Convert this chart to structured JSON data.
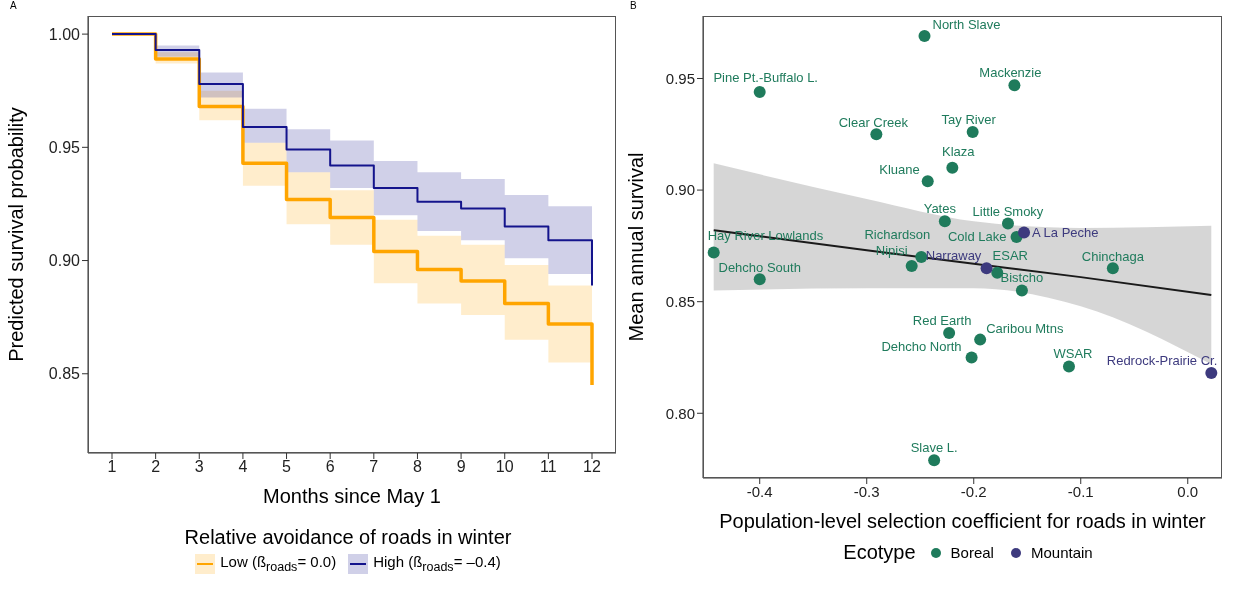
{
  "chart_data": [
    {
      "type": "step",
      "annotations": [
        "A"
      ],
      "xlabel": "Months since May 1",
      "ylabel": "Predicted survival probability",
      "legend_title": "Relative avoidance of roads in winter",
      "legend": "bottom",
      "x": [
        1,
        2,
        3,
        4,
        5,
        6,
        7,
        8,
        9,
        10,
        11,
        12
      ],
      "xlim": [
        0.45,
        12.55
      ],
      "xticks": [
        1,
        2,
        3,
        4,
        5,
        6,
        7,
        8,
        9,
        10,
        11,
        12
      ],
      "ylim": [
        0.815,
        1.008
      ],
      "yticks": [
        {
          "value": 0.85,
          "label": "0.85"
        },
        {
          "value": 0.9,
          "label": "0.90"
        },
        {
          "value": 0.95,
          "label": "0.95"
        },
        {
          "value": 1,
          "label": "1.00"
        }
      ],
      "series": [
        {
          "name": "Low (ß$_{roads}$= 0.0)",
          "color": "#ffa500",
          "values": [
            1.0,
            0.989,
            0.968,
            0.943,
            0.927,
            0.919,
            0.904,
            0.896,
            0.891,
            0.881,
            0.872,
            0.845
          ],
          "upper": [
            null,
            0.992,
            0.975,
            0.952,
            0.939,
            0.931,
            0.918,
            0.911,
            0.907,
            0.898,
            0.889,
            0.889
          ],
          "lower": [
            null,
            0.987,
            0.962,
            0.933,
            0.916,
            0.907,
            0.89,
            0.881,
            0.876,
            0.865,
            0.855,
            0.855
          ]
        },
        {
          "name": "High (ß$_{roads}$= –0.4)",
          "color": "#14148c",
          "values": [
            1.0,
            0.993,
            0.978,
            0.959,
            0.949,
            0.942,
            0.932,
            0.926,
            0.923,
            0.915,
            0.909,
            0.889
          ],
          "upper": [
            null,
            0.995,
            0.983,
            0.967,
            0.958,
            0.953,
            0.944,
            0.939,
            0.936,
            0.929,
            0.924,
            0.924
          ],
          "lower": [
            null,
            0.99,
            0.972,
            0.952,
            0.939,
            0.932,
            0.92,
            0.913,
            0.909,
            0.901,
            0.894,
            0.894
          ]
        }
      ]
    },
    {
      "type": "scatter",
      "annotations": [
        "B"
      ],
      "xlabel": "Population-level selection coefficient for roads in winter",
      "ylabel": "Mean annual survival",
      "legend_title": "Ecotype",
      "legend": "bottom",
      "xlim": [
        -0.453,
        0.032
      ],
      "xticks": [
        -0.4,
        -0.3,
        -0.2,
        -0.1,
        {
          "value": 0,
          "label": "0.0"
        }
      ],
      "ylim": [
        0.771,
        0.978
      ],
      "yticks": [
        {
          "value": 0.8,
          "label": "0.80"
        },
        {
          "value": 0.85,
          "label": "0.85"
        },
        {
          "value": 0.9,
          "label": "0.90"
        },
        {
          "value": 0.95,
          "label": "0.95"
        }
      ],
      "series": [
        {
          "name": "Boreal",
          "color": "#1f7b5c",
          "marker": "circle",
          "x": [
            -0.246,
            -0.4,
            -0.162,
            -0.291,
            -0.201,
            -0.22,
            -0.243,
            -0.227,
            -0.168,
            -0.16,
            -0.443,
            -0.249,
            -0.258,
            -0.178,
            -0.07,
            -0.4,
            -0.155,
            -0.223,
            -0.194,
            -0.202,
            -0.111,
            -0.237
          ],
          "values": [
            0.969,
            0.944,
            0.947,
            0.925,
            0.926,
            0.91,
            0.904,
            0.886,
            0.885,
            0.879,
            0.872,
            0.87,
            0.866,
            0.863,
            0.865,
            0.86,
            0.855,
            0.836,
            0.833,
            0.825,
            0.821,
            0.779
          ],
          "value_labels": [
            "North Slave",
            "Pine Pt.-Buffalo L.",
            "Mackenzie",
            "Clear Creek",
            "Tay River",
            "Klaza",
            "Kluane",
            "Yates",
            "Little Smoky",
            "Cold Lake",
            "Hay River Lowlands",
            "Richardson",
            "Nipisi",
            "ESAR",
            "Chinchaga",
            "Dehcho South",
            "Bistcho",
            "Red Earth",
            "Caribou Mtns",
            "Dehcho North",
            "WSAR",
            "Slave L."
          ]
        },
        {
          "name": "Mountain",
          "color": "#3d3a7e",
          "marker": "circle",
          "x": [
            -0.153,
            -0.188,
            0.022
          ],
          "values": [
            0.881,
            0.865,
            0.818
          ],
          "value_labels": [
            "A La Peche",
            "Narraway",
            "Redrock-Prairie Cr."
          ]
        },
        {
          "type": "line",
          "color": "#1a1a1a",
          "x": [
            -0.443,
            -0.3,
            -0.2,
            -0.1,
            0.022
          ],
          "values": [
            0.882,
            0.873,
            0.867,
            0.861,
            0.853
          ],
          "upper": [
            0.912,
            0.896,
            0.886,
            0.883,
            0.884
          ],
          "lower": [
            0.855,
            0.856,
            0.856,
            0.848,
            0.822
          ]
        }
      ]
    }
  ]
}
